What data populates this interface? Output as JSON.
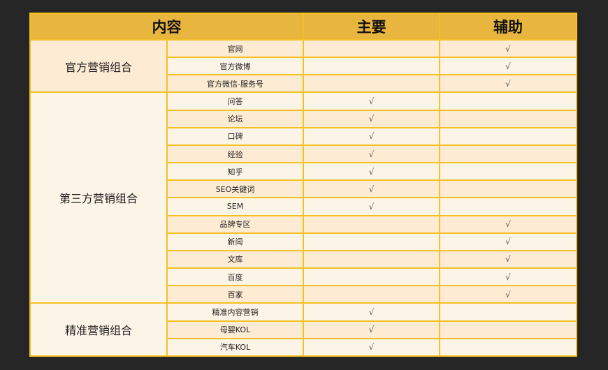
{
  "header": {
    "content": "内容",
    "primary": "主要",
    "auxiliary": "辅助"
  },
  "check_mark": "√",
  "colors": {
    "header_bg": "#e8b53e",
    "border": "#f5c023",
    "row_dark": "#fdebd3",
    "row_light": "#fdf4e8",
    "page_bg": "#262626"
  },
  "groups": [
    {
      "name": "官方营销组合",
      "items": [
        {
          "label": "官网",
          "primary": false,
          "auxiliary": true
        },
        {
          "label": "官方微博",
          "primary": false,
          "auxiliary": true
        },
        {
          "label": "官方微信-服务号",
          "primary": false,
          "auxiliary": true
        }
      ]
    },
    {
      "name": "第三方营销组合",
      "items": [
        {
          "label": "问答",
          "primary": true,
          "auxiliary": false
        },
        {
          "label": "论坛",
          "primary": true,
          "auxiliary": false
        },
        {
          "label": "口碑",
          "primary": true,
          "auxiliary": false
        },
        {
          "label": "经验",
          "primary": true,
          "auxiliary": false
        },
        {
          "label": "知乎",
          "primary": true,
          "auxiliary": false
        },
        {
          "label": "SEO关键词",
          "primary": true,
          "auxiliary": false
        },
        {
          "label": "SEM",
          "primary": true,
          "auxiliary": false
        },
        {
          "label": "品牌专区",
          "primary": false,
          "auxiliary": true
        },
        {
          "label": "新闻",
          "primary": false,
          "auxiliary": true
        },
        {
          "label": "文库",
          "primary": false,
          "auxiliary": true
        },
        {
          "label": "百度",
          "primary": false,
          "auxiliary": true
        },
        {
          "label": "百家",
          "primary": false,
          "auxiliary": true
        }
      ]
    },
    {
      "name": "精准营销组合",
      "items": [
        {
          "label": "精准内容营销",
          "primary": true,
          "auxiliary": false
        },
        {
          "label": "母婴KOL",
          "primary": true,
          "auxiliary": false
        },
        {
          "label": "汽车KOL",
          "primary": true,
          "auxiliary": false
        }
      ]
    }
  ]
}
